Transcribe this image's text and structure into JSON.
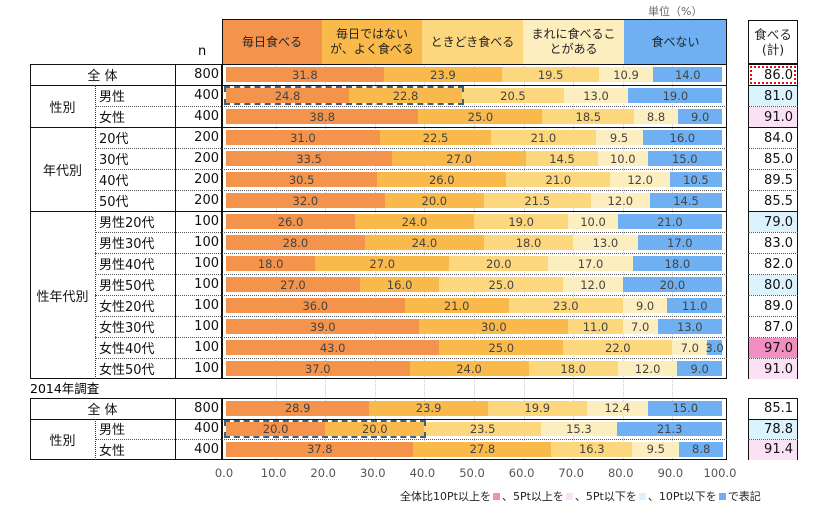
{
  "unit_label": "単位（%）",
  "n_header": "n",
  "total_header": [
    "食べる",
    "(計)"
  ],
  "survey_2014_label": "2014年調査",
  "colors": {
    "seg": [
      "#f4944c",
      "#f9b94b",
      "#fcd77e",
      "#fdeebf",
      "#6fb0f2"
    ],
    "up10": "#f18fc2",
    "up5": "#fbe1f6",
    "down5": "#dbf3fc",
    "down10": "#6fb0f2"
  },
  "legend": {
    "t0": "全体比10Pt以上を",
    "t1": "、5Pt以上を",
    "t2": "、5Pt以下を",
    "t3": "、10Pt以下を",
    "t4": "で表記"
  },
  "chart_data": {
    "type": "bar",
    "stacked": true,
    "orientation": "horizontal",
    "series_names": [
      "毎日食べる",
      "毎日ではないが、よく食べる",
      "ときどき食べる",
      "まれに食べることがある",
      "食べない"
    ],
    "xlim": [
      0,
      100
    ],
    "x_ticks": [
      "0.0",
      "10.0",
      "20.0",
      "30.0",
      "40.0",
      "50.0",
      "60.0",
      "70.0",
      "80.0",
      "90.0",
      "100.0"
    ],
    "grid": true,
    "rows": [
      {
        "group": "全 体",
        "label": "",
        "n": "800",
        "values": [
          31.8,
          23.9,
          19.5,
          10.9,
          14.0
        ],
        "total": "86.0",
        "hl": "ref"
      },
      {
        "group": "性別",
        "label": "男性",
        "n": "400",
        "values": [
          24.8,
          22.8,
          20.5,
          13.0,
          19.0
        ],
        "total": "81.0",
        "hl": "down5",
        "boxed": true
      },
      {
        "group": "",
        "label": "女性",
        "n": "400",
        "values": [
          38.8,
          25.0,
          18.5,
          8.8,
          9.0
        ],
        "total": "91.0",
        "hl": "up5"
      },
      {
        "group": "年代別",
        "label": "20代",
        "n": "200",
        "values": [
          31.0,
          22.5,
          21.0,
          9.5,
          16.0
        ],
        "total": "84.0",
        "hl": ""
      },
      {
        "group": "",
        "label": "30代",
        "n": "200",
        "values": [
          33.5,
          27.0,
          14.5,
          10.0,
          15.0
        ],
        "total": "85.0",
        "hl": ""
      },
      {
        "group": "",
        "label": "40代",
        "n": "200",
        "values": [
          30.5,
          26.0,
          21.0,
          12.0,
          10.5
        ],
        "total": "89.5",
        "hl": ""
      },
      {
        "group": "",
        "label": "50代",
        "n": "200",
        "values": [
          32.0,
          20.0,
          21.5,
          12.0,
          14.5
        ],
        "total": "85.5",
        "hl": ""
      },
      {
        "group": "性年代別",
        "label": "男性20代",
        "n": "100",
        "values": [
          26.0,
          24.0,
          19.0,
          10.0,
          21.0
        ],
        "total": "79.0",
        "hl": "down5"
      },
      {
        "group": "",
        "label": "男性30代",
        "n": "100",
        "values": [
          28.0,
          24.0,
          18.0,
          13.0,
          17.0
        ],
        "total": "83.0",
        "hl": ""
      },
      {
        "group": "",
        "label": "男性40代",
        "n": "100",
        "values": [
          18.0,
          27.0,
          20.0,
          17.0,
          18.0
        ],
        "total": "82.0",
        "hl": ""
      },
      {
        "group": "",
        "label": "男性50代",
        "n": "100",
        "values": [
          27.0,
          16.0,
          25.0,
          12.0,
          20.0
        ],
        "total": "80.0",
        "hl": "down5"
      },
      {
        "group": "",
        "label": "女性20代",
        "n": "100",
        "values": [
          36.0,
          21.0,
          23.0,
          9.0,
          11.0
        ],
        "total": "89.0",
        "hl": ""
      },
      {
        "group": "",
        "label": "女性30代",
        "n": "100",
        "values": [
          39.0,
          30.0,
          11.0,
          7.0,
          13.0
        ],
        "total": "87.0",
        "hl": ""
      },
      {
        "group": "",
        "label": "女性40代",
        "n": "100",
        "values": [
          43.0,
          25.0,
          22.0,
          7.0,
          3.0
        ],
        "total": "97.0",
        "hl": "up10"
      },
      {
        "group": "",
        "label": "女性50代",
        "n": "100",
        "values": [
          37.0,
          24.0,
          18.0,
          12.0,
          9.0
        ],
        "total": "91.0",
        "hl": "up5"
      }
    ],
    "rows_2014": [
      {
        "group": "全 体",
        "label": "",
        "n": "800",
        "values": [
          28.9,
          23.9,
          19.9,
          12.4,
          15.0
        ],
        "total": "85.1",
        "hl": ""
      },
      {
        "group": "性別",
        "label": "男性",
        "n": "400",
        "values": [
          20.0,
          20.0,
          23.5,
          15.3,
          21.3
        ],
        "total": "78.8",
        "hl": "down5",
        "boxed": true
      },
      {
        "group": "",
        "label": "女性",
        "n": "400",
        "values": [
          37.8,
          27.8,
          16.3,
          9.5,
          8.8
        ],
        "total": "91.4",
        "hl": "up5"
      }
    ]
  }
}
